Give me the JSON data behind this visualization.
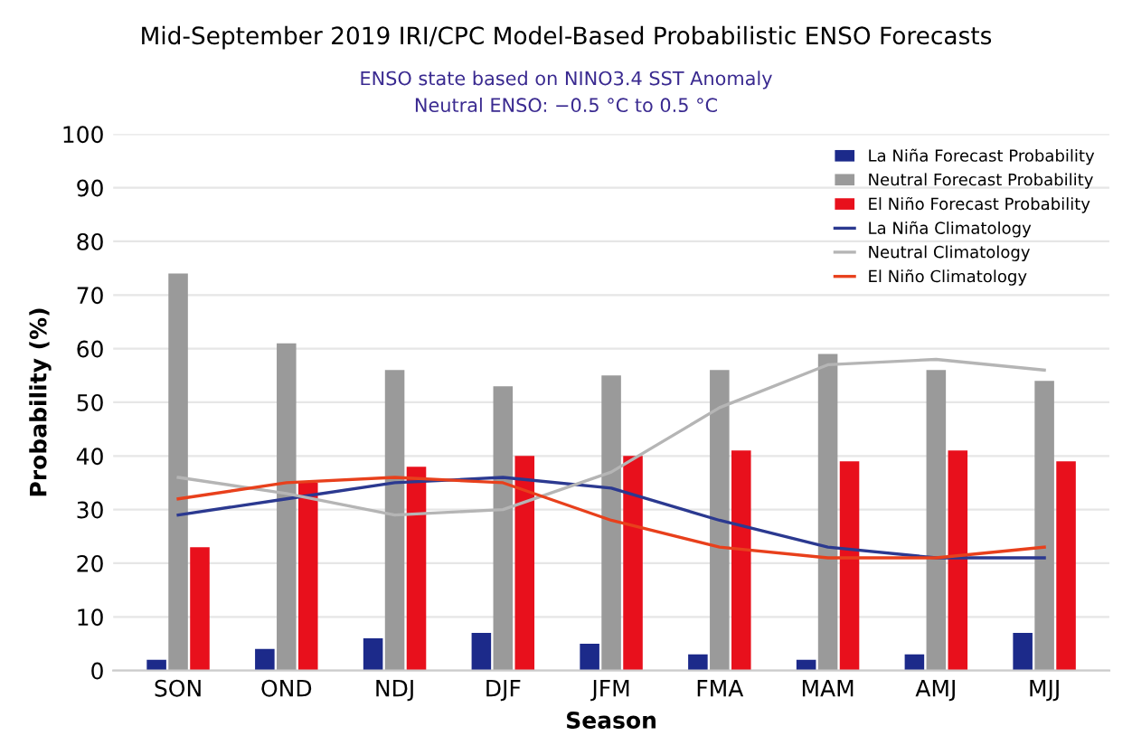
{
  "chart_data": {
    "type": "bar",
    "title": "Mid-September 2019 IRI/CPC Model-Based Probabilistic ENSO Forecasts",
    "subtitle": "ENSO state based on NINO3.4 SST Anomaly\nNeutral ENSO: −0.5 °C to 0.5 °C",
    "xlabel": "Season",
    "ylabel": "Probability (%)",
    "categories": [
      "SON",
      "OND",
      "NDJ",
      "DJF",
      "JFM",
      "FMA",
      "MAM",
      "AMJ",
      "MJJ"
    ],
    "series": [
      {
        "name": "La Niña Forecast Probability",
        "color": "#1c2a8a",
        "values": [
          2,
          4,
          6,
          7,
          5,
          3,
          2,
          3,
          7
        ]
      },
      {
        "name": "Neutral Forecast Probability",
        "color": "#9a9a9a",
        "values": [
          74,
          61,
          56,
          53,
          55,
          56,
          59,
          56,
          54
        ]
      },
      {
        "name": "El Niño Forecast Probability",
        "color": "#e8101c",
        "values": [
          23,
          35,
          38,
          40,
          40,
          41,
          39,
          41,
          39
        ]
      },
      {
        "name": "La Niña Climatology",
        "type": "line",
        "color": "#2b3990",
        "values": [
          29,
          32,
          35,
          36,
          34,
          28,
          23,
          21,
          21
        ]
      },
      {
        "name": "Neutral Climatology",
        "type": "line",
        "color": "#b5b5b5",
        "values": [
          36,
          33,
          29,
          30,
          37,
          49,
          57,
          58,
          56
        ]
      },
      {
        "name": "El Niño Climatology",
        "type": "line",
        "color": "#e8401c",
        "values": [
          32,
          35,
          36,
          35,
          28,
          23,
          21,
          21,
          23
        ]
      }
    ],
    "ylim": [
      0,
      100
    ],
    "yticks": [
      0,
      10,
      20,
      30,
      40,
      50,
      60,
      70,
      80,
      90,
      100
    ],
    "grid": "y",
    "legend": "top right"
  }
}
